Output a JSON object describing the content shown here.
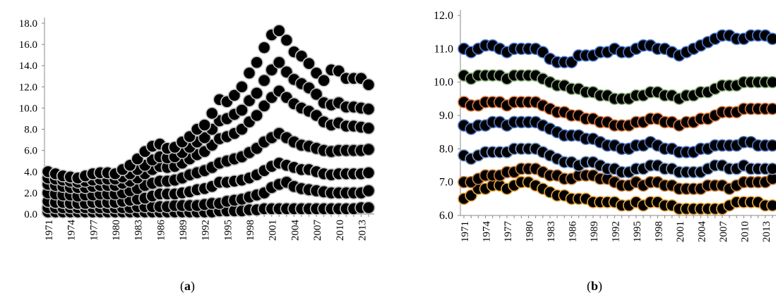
{
  "captions": {
    "a": "a",
    "b": "b"
  },
  "chart_data": [
    {
      "type": "scatter",
      "panel": "a",
      "title": "",
      "xlabel": "",
      "ylabel": "",
      "ylim": [
        0,
        18
      ],
      "yticks": [
        "0.0",
        "2.0",
        "4.0",
        "6.0",
        "8.0",
        "10.0",
        "12.0",
        "14.0",
        "16.0",
        "18.0"
      ],
      "x": [
        1971,
        1972,
        1973,
        1974,
        1975,
        1976,
        1977,
        1978,
        1979,
        1980,
        1981,
        1982,
        1983,
        1984,
        1985,
        1986,
        1987,
        1988,
        1989,
        1990,
        1991,
        1992,
        1993,
        1994,
        1995,
        1996,
        1997,
        1998,
        1999,
        2000,
        2001,
        2002,
        2003,
        2004,
        2005,
        2006,
        2007,
        2008,
        2009,
        2010,
        2011,
        2012,
        2013,
        2014
      ],
      "xtick_labels": [
        "1971",
        "1974",
        "1977",
        "1980",
        "1983",
        "1986",
        "1989",
        "1992",
        "1995",
        "1998",
        "2001",
        "2004",
        "2007",
        "2010",
        "2013"
      ],
      "grid": false,
      "series": [
        {
          "values": [
            0.2,
            0.2,
            0.2,
            0.2,
            0.2,
            0.2,
            0.2,
            0.2,
            0.2,
            0.2,
            0.2,
            0.2,
            0.2,
            0.2,
            0.2,
            0.2,
            0.2,
            0.2,
            0.2,
            0.2,
            0.2,
            0.2,
            0.2,
            0.3,
            0.3,
            0.3,
            0.3,
            0.4,
            0.4,
            0.5,
            0.5,
            0.5,
            0.5,
            0.5,
            0.5,
            0.5,
            0.5,
            0.5,
            0.5,
            0.5,
            0.5,
            0.5,
            0.6,
            0.6
          ]
        },
        {
          "values": [
            0.6,
            0.6,
            0.6,
            0.6,
            0.6,
            0.6,
            0.6,
            0.6,
            0.6,
            0.6,
            0.6,
            0.6,
            0.7,
            0.7,
            0.7,
            0.7,
            0.7,
            0.8,
            0.8,
            0.8,
            0.8,
            0.9,
            1.0,
            1.0,
            1.2,
            1.3,
            1.4,
            1.6,
            1.8,
            2.0,
            2.5,
            2.8,
            3.0,
            2.6,
            2.4,
            2.3,
            2.2,
            2.1,
            2.0,
            2.0,
            2.0,
            2.0,
            2.0,
            2.2
          ]
        },
        {
          "values": [
            1.2,
            1.1,
            1.1,
            1.0,
            1.0,
            1.0,
            1.1,
            1.1,
            1.1,
            1.1,
            1.2,
            1.3,
            1.4,
            1.5,
            1.7,
            1.9,
            1.9,
            1.9,
            2.0,
            2.1,
            2.3,
            2.4,
            2.6,
            3.0,
            3.0,
            3.1,
            3.2,
            3.4,
            3.7,
            4.1,
            4.5,
            4.8,
            4.6,
            4.4,
            4.2,
            4.2,
            4.0,
            3.8,
            3.7,
            3.8,
            3.8,
            3.8,
            3.8,
            3.9
          ]
        },
        {
          "values": [
            2.0,
            1.9,
            1.8,
            1.8,
            1.7,
            1.8,
            1.8,
            1.9,
            1.9,
            1.9,
            2.0,
            2.2,
            2.4,
            2.7,
            2.9,
            3.1,
            3.1,
            3.2,
            3.4,
            3.7,
            3.9,
            4.1,
            4.4,
            4.8,
            5.0,
            5.2,
            5.4,
            5.8,
            6.2,
            6.8,
            7.2,
            7.6,
            7.2,
            6.8,
            6.5,
            6.4,
            6.2,
            6.0,
            5.9,
            6.0,
            6.0,
            6.0,
            6.0,
            6.1
          ]
        },
        {
          "values": [
            2.8,
            2.7,
            2.6,
            2.5,
            2.5,
            2.5,
            2.6,
            2.7,
            2.7,
            2.7,
            2.9,
            3.1,
            3.4,
            3.8,
            4.2,
            4.5,
            4.4,
            4.5,
            4.8,
            5.2,
            5.6,
            5.9,
            6.5,
            7.1,
            7.3,
            7.6,
            8.0,
            8.7,
            9.3,
            10.2,
            11.0,
            11.6,
            11.0,
            10.4,
            10.0,
            9.7,
            9.3,
            8.7,
            8.4,
            8.6,
            8.3,
            8.3,
            8.2,
            8.1
          ]
        },
        {
          "values": [
            3.4,
            3.3,
            3.2,
            3.1,
            3.0,
            3.1,
            3.2,
            3.3,
            3.3,
            3.3,
            3.5,
            3.8,
            4.2,
            4.6,
            5.1,
            5.4,
            5.3,
            5.4,
            5.8,
            6.3,
            6.8,
            7.2,
            8.0,
            8.8,
            9.0,
            9.4,
            9.8,
            10.7,
            11.4,
            12.6,
            13.6,
            14.3,
            13.4,
            12.7,
            12.3,
            11.9,
            11.3,
            10.5,
            10.3,
            10.5,
            10.1,
            10.1,
            10.0,
            9.9
          ]
        },
        {
          "values": [
            4.0,
            3.8,
            3.6,
            3.5,
            3.4,
            3.6,
            3.8,
            3.9,
            3.9,
            3.8,
            4.2,
            4.6,
            5.2,
            5.9,
            6.4,
            6.6,
            6.2,
            6.3,
            6.8,
            7.3,
            8.0,
            8.4,
            9.5,
            10.8,
            10.6,
            11.2,
            12.0,
            13.3,
            14.3,
            15.7,
            16.9,
            17.3,
            16.4,
            15.3,
            14.9,
            14.2,
            13.3,
            12.6,
            13.6,
            13.5,
            12.8,
            12.8,
            12.8,
            12.2
          ]
        }
      ]
    },
    {
      "type": "scatter",
      "panel": "b",
      "title": "",
      "xlabel": "",
      "ylabel": "",
      "ylim": [
        6,
        12
      ],
      "yticks": [
        "6.0",
        "7.0",
        "8.0",
        "9.0",
        "10.0",
        "11.0",
        "12.0"
      ],
      "x": [
        1971,
        1972,
        1973,
        1974,
        1975,
        1976,
        1977,
        1978,
        1979,
        1980,
        1981,
        1982,
        1983,
        1984,
        1985,
        1986,
        1987,
        1988,
        1989,
        1990,
        1991,
        1992,
        1993,
        1994,
        1995,
        1996,
        1997,
        1998,
        1999,
        2000,
        2001,
        2002,
        2003,
        2004,
        2005,
        2006,
        2007,
        2008,
        2009,
        2010,
        2011,
        2012,
        2013,
        2014
      ],
      "xtick_labels": [
        "1971",
        "1974",
        "1977",
        "1980",
        "1983",
        "1986",
        "1989",
        "1992",
        "1995",
        "1998",
        "2001",
        "2004",
        "2007",
        "2010",
        "2013"
      ],
      "grid": false,
      "series": [
        {
          "values": [
            6.5,
            6.6,
            6.8,
            6.8,
            6.9,
            6.9,
            6.8,
            6.9,
            7.0,
            7.0,
            6.9,
            6.8,
            6.7,
            6.6,
            6.6,
            6.5,
            6.5,
            6.5,
            6.4,
            6.4,
            6.4,
            6.4,
            6.3,
            6.3,
            6.4,
            6.3,
            6.4,
            6.4,
            6.3,
            6.3,
            6.2,
            6.2,
            6.2,
            6.2,
            6.2,
            6.2,
            6.2,
            6.3,
            6.4,
            6.4,
            6.4,
            6.4,
            6.3,
            6.3
          ]
        },
        {
          "values": [
            7.0,
            7.0,
            7.1,
            7.2,
            7.2,
            7.2,
            7.3,
            7.3,
            7.4,
            7.4,
            7.4,
            7.3,
            7.2,
            7.2,
            7.1,
            7.1,
            7.2,
            7.2,
            7.2,
            7.1,
            7.1,
            7.0,
            6.9,
            6.9,
            7.0,
            6.9,
            7.0,
            7.0,
            6.9,
            6.9,
            6.8,
            6.8,
            6.8,
            6.8,
            6.9,
            6.9,
            6.9,
            6.8,
            6.9,
            7.0,
            7.0,
            7.0,
            7.0,
            7.1
          ]
        },
        {
          "values": [
            7.8,
            7.7,
            7.8,
            7.9,
            7.9,
            7.9,
            7.9,
            8.0,
            8.0,
            8.0,
            8.0,
            7.9,
            7.8,
            7.7,
            7.6,
            7.6,
            7.5,
            7.6,
            7.6,
            7.5,
            7.4,
            7.4,
            7.3,
            7.3,
            7.4,
            7.4,
            7.5,
            7.5,
            7.4,
            7.4,
            7.3,
            7.3,
            7.3,
            7.3,
            7.4,
            7.5,
            7.5,
            7.4,
            7.4,
            7.5,
            7.4,
            7.4,
            7.4,
            7.4
          ]
        },
        {
          "values": [
            8.7,
            8.6,
            8.7,
            8.7,
            8.8,
            8.8,
            8.7,
            8.8,
            8.8,
            8.8,
            8.8,
            8.7,
            8.6,
            8.5,
            8.4,
            8.4,
            8.4,
            8.3,
            8.3,
            8.2,
            8.1,
            8.1,
            8.0,
            8.0,
            8.1,
            8.1,
            8.2,
            8.1,
            8.0,
            8.0,
            7.9,
            7.9,
            7.9,
            8.0,
            8.0,
            8.1,
            8.1,
            8.1,
            8.1,
            8.2,
            8.2,
            8.1,
            8.1,
            8.1
          ]
        },
        {
          "values": [
            9.4,
            9.3,
            9.3,
            9.4,
            9.4,
            9.4,
            9.3,
            9.4,
            9.4,
            9.4,
            9.4,
            9.3,
            9.2,
            9.1,
            9.1,
            9.0,
            9.0,
            8.9,
            8.9,
            8.8,
            8.8,
            8.7,
            8.7,
            8.7,
            8.8,
            8.8,
            8.9,
            8.9,
            8.8,
            8.8,
            8.7,
            8.8,
            8.8,
            8.9,
            8.9,
            9.0,
            9.1,
            9.1,
            9.1,
            9.2,
            9.2,
            9.2,
            9.2,
            9.2
          ]
        },
        {
          "values": [
            10.2,
            10.1,
            10.2,
            10.2,
            10.2,
            10.2,
            10.1,
            10.2,
            10.2,
            10.2,
            10.2,
            10.1,
            10.0,
            9.9,
            9.9,
            9.8,
            9.8,
            9.7,
            9.7,
            9.6,
            9.6,
            9.5,
            9.5,
            9.5,
            9.6,
            9.6,
            9.7,
            9.7,
            9.6,
            9.6,
            9.5,
            9.6,
            9.6,
            9.7,
            9.7,
            9.8,
            9.9,
            9.9,
            9.9,
            10.0,
            10.0,
            10.0,
            10.0,
            10.0
          ]
        },
        {
          "values": [
            11.0,
            10.9,
            11.0,
            11.1,
            11.1,
            11.0,
            10.9,
            11.0,
            11.0,
            11.0,
            11.0,
            10.9,
            10.7,
            10.6,
            10.6,
            10.6,
            10.8,
            10.8,
            10.8,
            10.9,
            10.9,
            11.0,
            10.9,
            10.9,
            11.0,
            11.1,
            11.1,
            11.0,
            11.0,
            10.9,
            10.8,
            10.9,
            11.0,
            11.1,
            11.2,
            11.3,
            11.4,
            11.4,
            11.3,
            11.3,
            11.4,
            11.4,
            11.4,
            11.3
          ]
        }
      ]
    }
  ]
}
